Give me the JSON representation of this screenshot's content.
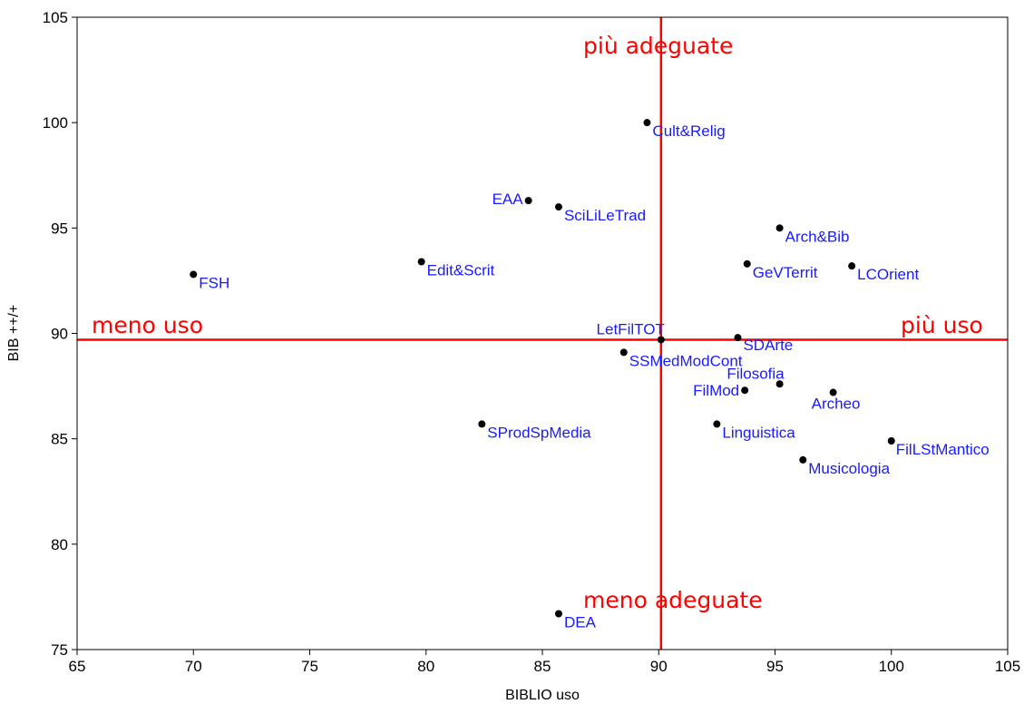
{
  "chart_data": {
    "type": "scatter",
    "xlabel": "BIBLIO uso",
    "ylabel": "BIB ++/+",
    "xlim": [
      65,
      105
    ],
    "ylim": [
      75,
      105
    ],
    "x_ticks": [
      "65",
      "70",
      "75",
      "80",
      "85",
      "90",
      "95",
      "100",
      "105"
    ],
    "y_ticks": [
      "75",
      "80",
      "85",
      "90",
      "95",
      "100",
      "105"
    ],
    "grid": false,
    "reference_lines": {
      "x": 90.1,
      "y": 89.7,
      "color": "#ff0000"
    },
    "quadrant_labels": {
      "top": "più adeguate",
      "bottom": "meno adeguate",
      "left": "meno uso",
      "right": "più uso"
    },
    "points": [
      {
        "label": "Cult&Relig",
        "x": 89.5,
        "y": 100.0
      },
      {
        "label": "EAA",
        "x": 84.4,
        "y": 96.3
      },
      {
        "label": "SciLiLeTrad",
        "x": 85.7,
        "y": 96.0
      },
      {
        "label": "Arch&Bib",
        "x": 95.2,
        "y": 95.0
      },
      {
        "label": "FSH",
        "x": 70.0,
        "y": 92.8
      },
      {
        "label": "Edit&Scrit",
        "x": 79.8,
        "y": 93.4
      },
      {
        "label": "GeVTerrit",
        "x": 93.8,
        "y": 93.3
      },
      {
        "label": "LCOrient",
        "x": 98.3,
        "y": 93.2
      },
      {
        "label": "LetFilTOT",
        "x": 90.1,
        "y": 89.7
      },
      {
        "label": "SDArte",
        "x": 93.4,
        "y": 89.8
      },
      {
        "label": "SSMedModCont",
        "x": 88.5,
        "y": 89.1
      },
      {
        "label": "Filosofia",
        "x": 95.2,
        "y": 87.6
      },
      {
        "label": "FilMod",
        "x": 93.7,
        "y": 87.3
      },
      {
        "label": "Archeo",
        "x": 97.5,
        "y": 87.2
      },
      {
        "label": "Linguistica",
        "x": 92.5,
        "y": 85.7
      },
      {
        "label": "SProdSpMedia",
        "x": 82.4,
        "y": 85.7
      },
      {
        "label": "FilLStMantico",
        "x": 100.0,
        "y": 84.9
      },
      {
        "label": "Musicologia",
        "x": 96.2,
        "y": 84.0
      },
      {
        "label": "DEA",
        "x": 85.7,
        "y": 76.7
      }
    ]
  }
}
